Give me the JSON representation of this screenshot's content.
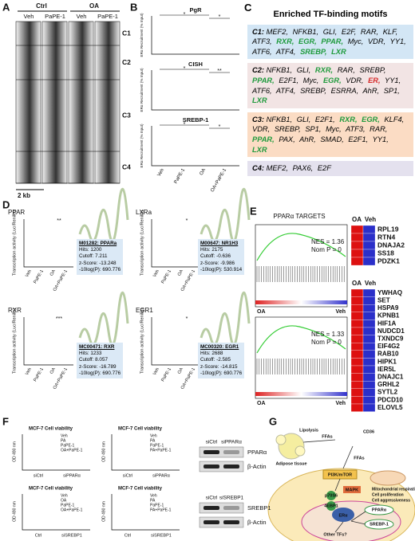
{
  "A": {
    "label": "A",
    "groups": [
      "Ctrl",
      "OA"
    ],
    "columns": [
      "Veh",
      "PaPE-1",
      "Veh",
      "PaPE-1"
    ],
    "clusters": [
      "C1",
      "C2",
      "C3",
      "C4"
    ],
    "scale": "2 kb"
  },
  "B": {
    "label": "B",
    "ylabel": "ERα Recruitment (% Input)",
    "xlabels": [
      "Veh",
      "PaPE-1",
      "OA",
      "OA+PaPE-1"
    ],
    "charts": [
      {
        "title": "PgR",
        "stars": [
          "*",
          "*"
        ]
      },
      {
        "title": "CISH",
        "stars": [
          "*",
          "**"
        ]
      },
      {
        "title": "SREBP-1",
        "stars": [
          "*",
          "*"
        ]
      }
    ]
  },
  "C": {
    "label": "C",
    "title": "Enriched TF-binding motifs",
    "clusters": [
      {
        "name": "C1:",
        "items": [
          "MEF2,",
          "NFKB1,",
          "GLI,",
          "E2F,",
          "RAR,",
          "KLF,",
          "ATF3,",
          {
            "text": "RXR,",
            "color": "#1e9a3c"
          },
          {
            "text": "EGR,",
            "color": "#1e9a3c"
          },
          {
            "text": "PPAR,",
            "color": "#1e9a3c"
          },
          "Myc,",
          "VDR,",
          "YY1,",
          "ATF6,",
          "ATF4,",
          {
            "text": "SREBP,",
            "color": "#1e9a3c"
          },
          {
            "text": "LXR",
            "color": "#1e9a3c"
          }
        ]
      },
      {
        "name": "C2:",
        "items": [
          "NFKB1,",
          "GLI,",
          {
            "text": "RXR,",
            "color": "#1e9a3c"
          },
          "RAR,",
          "SREBP,",
          {
            "text": "PPAR,",
            "color": "#1e9a3c"
          },
          "E2F1,",
          "Myc,",
          {
            "text": "EGR,",
            "color": "#1e9a3c"
          },
          "VDR,",
          {
            "text": "ER,",
            "color": "#d62a2a"
          },
          "YY1,",
          "ATF6,",
          "ATF4,",
          "SREBP,",
          "ESRRA,",
          "AhR,",
          "SP1,",
          {
            "text": "LXR",
            "color": "#1e9a3c"
          }
        ]
      },
      {
        "name": "C3:",
        "items": [
          "NFKB1,",
          "GLI,",
          "E2F1,",
          {
            "text": "RXR,",
            "color": "#1e9a3c"
          },
          {
            "text": "EGR,",
            "color": "#1e9a3c"
          },
          "KLF4,",
          "VDR,",
          "SREBP,",
          "SP1,",
          "Myc,",
          "ATF3,",
          "RAR,",
          {
            "text": "PPAR,",
            "color": "#1e9a3c"
          },
          "PAX,",
          "AhR,",
          "SMAD,",
          "E2F1,",
          "YY1,",
          {
            "text": "LXR",
            "color": "#1e9a3c"
          }
        ]
      },
      {
        "name": "C4:",
        "items": [
          "MEF2,",
          "PAX6,",
          "E2F"
        ]
      }
    ]
  },
  "D": {
    "label": "D",
    "ylabel": "Transcription activity (Luc/Renilla)",
    "xlabels": [
      "Veh",
      "PaPE-1",
      "OA",
      "OA+PaPE-1"
    ],
    "charts": [
      {
        "title": "PPAR",
        "stars": "**",
        "motif": [
          "M01282: PPARa",
          "Hits: 1200",
          "Cutoff: 7.211",
          "z-Score: -13.248",
          "-10log(P): 690.776"
        ]
      },
      {
        "title": "LXRa",
        "stars": "*",
        "motif": [
          "M00647: NR1H3",
          "Hits: 2175",
          "Cutoff: -0.636",
          "z-Score: -9.986",
          "-10log(P): 530.914"
        ]
      },
      {
        "title": "RXR",
        "stars": "***",
        "motif": [
          "MC00471: RXR",
          "Hits: 1233",
          "Cutoff: 8.057",
          "z-Score: -16.789",
          "-10log(P): 690.776"
        ]
      },
      {
        "title": "EGR1",
        "stars": "*",
        "motif": [
          "MC00320: EGR1",
          "Hits: 2688",
          "Cutoff: -2.585",
          "z-Score: -14.815",
          "-10log(P): 690.776"
        ]
      }
    ]
  },
  "E": {
    "label": "E",
    "title": "PPARα TARGETS",
    "ends": [
      "OA",
      "Veh"
    ],
    "columns": [
      "OA",
      "Veh"
    ],
    "plots": [
      {
        "nes": "NES = 1.36",
        "p": "Nom P = 0",
        "genes": [
          "RPL19",
          "RTN4",
          "DNAJA2",
          "SS18",
          "PDZK1"
        ]
      },
      {
        "nes": "NES = 1.33",
        "p": "Nom P = 0",
        "genes": [
          "YWHAQ",
          "SET",
          "HSPA9",
          "KPNB1",
          "HIF1A",
          "NUDCD1",
          "TXNDC9",
          "EIF4G2",
          "RAB10",
          "HIPK1",
          "IER5L",
          "DNAJC1",
          "GRHL2",
          "SYTL2",
          "PDCD10",
          "ELOVL5"
        ]
      }
    ]
  },
  "F": {
    "label": "F",
    "title": "MCF-7 Cell viability",
    "ylabel": "OD 490 nm",
    "charts": [
      {
        "legend": [
          "Veh",
          "PA",
          "PaPE-1",
          "OA+PaPE-1"
        ],
        "x": [
          "siCtrl",
          "siPPARα"
        ]
      },
      {
        "legend": [
          "Veh",
          "PA",
          "PaPE-1",
          "PA+PaPE-1"
        ],
        "x": [
          "siCtrl",
          "siPPARα"
        ]
      },
      {
        "legend": [
          "Veh",
          "OA",
          "PaPE-1",
          "OA+PaPE-1"
        ],
        "x": [
          "Ctrl",
          "siSREBP1"
        ]
      },
      {
        "legend": [
          "Veh",
          "PA",
          "PaPE-1",
          "PA+PaPE-1"
        ],
        "x": [
          "Ctrl",
          "siSREBP1"
        ]
      }
    ],
    "blots": [
      {
        "lanes": [
          "siCtrl",
          "siPPARα"
        ],
        "rows": [
          "PPARα",
          "β-Actin"
        ]
      },
      {
        "lanes": [
          "siCtrl",
          "siSREBP1"
        ],
        "rows": [
          "SREBP1",
          "β-Actin"
        ]
      }
    ]
  },
  "G": {
    "label": "G",
    "lipolysis": "Lipolysis",
    "ffas": "FFAs",
    "cd36": "CD36",
    "adipose": "Adipose tissue",
    "pi3k": "PI3K/mTOR",
    "mapk": "MAPK",
    "p70": "p70S6",
    "ebp": "4EBP1",
    "er": "ERα",
    "ppar": "PPARα",
    "srebp": "SREBP-1",
    "other": "Other TFs?",
    "outcomes": [
      "Mitochondrial respiration",
      "Cell proliferation",
      "Cell aggressiveness"
    ]
  }
}
